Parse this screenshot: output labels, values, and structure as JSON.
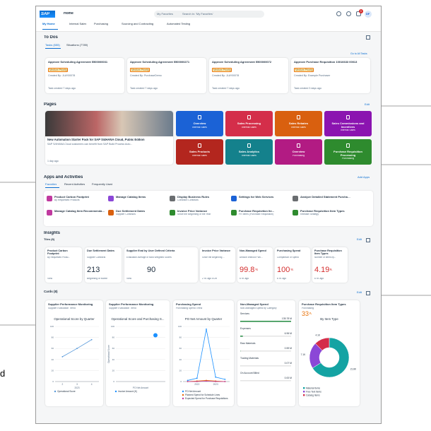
{
  "annotation": "d",
  "header": {
    "logo": "SAP",
    "home": "Home",
    "search_scope": "My Favorites",
    "search_placeholder": "Search in: 'My Favorites'",
    "notifications": "9",
    "avatar": "DF",
    "tabs": [
      "My Home",
      "Internal Sales",
      "Purchasing",
      "Sourcing and Contracting",
      "Automated Testing"
    ]
  },
  "todos": {
    "title": "To Dos",
    "tabs": [
      "Tasks (655)",
      "Situations (7789)"
    ],
    "link": "Go to All Tasks",
    "cards": [
      {
        "title": "Approve Scheduling Agreement 5500000031",
        "priority": "Medium Priority",
        "created_by": "Created By: JLAY00078",
        "footer": "Task created 7 days ago"
      },
      {
        "title": "Approve Scheduling Agreement 5500000271",
        "priority": "Medium Priority",
        "created_by": "Created By: PurchaseDemo",
        "footer": "Task created 7 days ago"
      },
      {
        "title": "Approve Scheduling Agreement 5500000072",
        "priority": "Medium Priority",
        "created_by": "Created By: JLAY00078",
        "footer": "Task created 7 days ago"
      },
      {
        "title": "Approve Purchase Requisition 10016633 00013",
        "priority": "Medium Priority",
        "created_by": "Created By: Example Purchaser",
        "footer": "Task created 3 days ago"
      }
    ]
  },
  "pages": {
    "title": "Pages",
    "edit": "Edit",
    "hero": {
      "title": "New Automation Starter Pack for SAP S/4HANA Cloud, Public Edition",
      "text": "SAP S/4HANA Cloud customers can benefit from SAP Build Process Auto...",
      "footer": "1 day ago"
    },
    "tiles": [
      {
        "title": "Overview",
        "subtitle": "Internal Sales",
        "color": "#1b62d6"
      },
      {
        "title": "Sales Processing",
        "subtitle": "Internal Sales",
        "color": "#d42e4a"
      },
      {
        "title": "Sales Rebates",
        "subtitle": "Internal Sales",
        "color": "#d9600f"
      },
      {
        "title": "Sales Commissions and Incentives",
        "subtitle": "Internal Sales",
        "color": "#8b14b0"
      },
      {
        "title": "Sales Products",
        "subtitle": "Internal Sales",
        "color": "#b3261e"
      },
      {
        "title": "Sales Analytics",
        "subtitle": "Internal Sales",
        "color": "#14818c"
      },
      {
        "title": "Overview",
        "subtitle": "Purchasing",
        "color": "#b21b83"
      },
      {
        "title": "Purchase Requisition Processing",
        "subtitle": "Purchasing",
        "color": "#2e8b2e"
      }
    ]
  },
  "apps": {
    "title": "Apps and Activities",
    "link": "Add Apps",
    "tabs": [
      "Favorites",
      "Recent Activities",
      "Frequently Used"
    ],
    "items": [
      {
        "name": "Product Carbon Footprint",
        "subtitle": "By Requested Products",
        "color": "#c0399f"
      },
      {
        "name": "Manage Catalog Items",
        "subtitle": "",
        "color": "#8b47d7"
      },
      {
        "name": "Display Business Rules",
        "subtitle": "Condition Contracts",
        "color": "#6a6d70"
      },
      {
        "name": "Settings for Web Services",
        "subtitle": "",
        "color": "#1b62d6"
      },
      {
        "name": "Analyze Detailed Statement Purchasing Rebate",
        "subtitle": "",
        "color": "#6a6d70"
      },
      {
        "name": "Manage Catalog Item Recommendations",
        "subtitle": "",
        "color": "#c0399f"
      },
      {
        "name": "Due Settlement Dates",
        "subtitle": "Supplier Contracts",
        "color": "#d9600f"
      },
      {
        "name": "Invoice Price Variance",
        "subtitle": "Since the Beginning of the Year",
        "color": "#2e8b2e"
      },
      {
        "name": "Purchase Requisition Ite...",
        "subtitle": "PR Items (Purchase Requisition)",
        "color": "#2e8b2e"
      },
      {
        "name": "Purchase Requisition Item Types",
        "subtitle": "Release Strategy",
        "color": "#2e8b2e"
      }
    ]
  },
  "insights": {
    "title": "Insights",
    "subtitle": "Tiles (8)",
    "edit": "Edit",
    "tiles": [
      {
        "title": "Product Carbon Footprint",
        "subtitle": "By Requested Produ...",
        "value": "",
        "unit": "",
        "footer": "View",
        "color": "#1d2d3e"
      },
      {
        "title": "Due Settlement Dates",
        "subtitle": "Supplier Contracts",
        "value": "213",
        "unit": "",
        "footer": "Beginning of Month",
        "color": "#1d2d3e"
      },
      {
        "title": "Supplier Eval by User Defined Criteria",
        "subtitle": "Evaluation Average of Most Weighted Scores",
        "value": "90",
        "unit": "",
        "footer": "View",
        "color": "#1d2d3e"
      },
      {
        "title": "Invoice Price Variance",
        "subtitle": "Since the Beginning ...",
        "value": "",
        "unit": "",
        "footer": "2 hr. ago EUR",
        "color": "#1d2d3e"
      },
      {
        "title": "Non-Managed Spend",
        "subtitle": "Amount Without Purc...",
        "value": "99.8",
        "unit": "%",
        "footer": "6 hr. ago",
        "color": "#d42e2e"
      },
      {
        "title": "Purchasing Spend",
        "subtitle": "Comparison of Spend",
        "value": "100",
        "unit": "%",
        "footer": "6 hr. ago",
        "color": "#d42e2e"
      },
      {
        "title": "Purchase Requisition Item Types",
        "subtitle": "Number of Items by...",
        "value": "4.19",
        "unit": "K",
        "footer": "6 hr. ago",
        "color": "#d42e2e"
      }
    ]
  },
  "cards": {
    "title": "Cards (8)",
    "edit": "Edit",
    "items": [
      {
        "title": "Supplier Performance Monitoring",
        "subtitle": "Supplier Evaluation Trend",
        "chart": {
          "type": "line",
          "title": "Operational Score by Quarter",
          "categories": [
            "2",
            "3",
            "4"
          ],
          "x_label": "2023",
          "series": [
            {
              "name": "Operational Score",
              "color": "#5899da",
              "values": [
                45,
                60,
                76
              ]
            }
          ],
          "ylim": [
            0,
            100
          ],
          "yticks": [
            0,
            20,
            40,
            60,
            80,
            100
          ]
        }
      },
      {
        "title": "Supplier Performance Monitoring",
        "subtitle": "Supplier Evaluation Trend",
        "chart": {
          "type": "scatter",
          "title": "Operational Score and Purchasing S...",
          "y_label": "Operational Score",
          "x_label": "PO Net Amount",
          "series": [
            {
              "name": "Invoice Amount (K)",
              "color": "#1b90ff",
              "x": [
                0.8
              ],
              "values": [
                84
              ]
            }
          ],
          "xlim": [
            0,
            1
          ],
          "ylim": [
            0,
            100
          ],
          "yticks": [
            0,
            20,
            40,
            60,
            80,
            100
          ]
        }
      },
      {
        "title": "Purchasing Spend",
        "subtitle": "Purchasing Spend Trend",
        "chart": {
          "type": "line",
          "title": "PO Net Amount by Quarter",
          "categories": [
            null,
            "2022",
            null,
            "2023",
            null
          ],
          "series": [
            {
              "name": "PO Net Amount",
              "color": "#1b90ff",
              "values": [
                2,
                6,
                95,
                8,
                4
              ]
            },
            {
              "name": "Planned Spend for Schedule Lines",
              "color": "#e76500",
              "values": [
                0,
                1,
                2,
                1,
                0
              ]
            },
            {
              "name": "Expected Spend for Purchase Requisitions",
              "color": "#c0399f",
              "values": [
                0,
                0,
                1,
                0,
                0
              ]
            }
          ],
          "ylim": [
            0,
            100
          ],
          "yticks": [
            0,
            20,
            40,
            60,
            80,
            100
          ]
        }
      },
      {
        "title": "Non-Managed Spend",
        "subtitle": "Non-Managed Spend by Category",
        "chart": {
          "type": "bar",
          "categories": [
            "Services",
            "Expenses",
            "Raw Materials",
            "Trading Materials",
            "On Account Billed"
          ],
          "values": [
            135.78,
            6.96,
            0.59,
            0.07,
            0
          ],
          "value_labels": [
            "135.78 M",
            "6.96 M",
            "0.59 M",
            "0.07 M",
            "0.00 M"
          ],
          "color": "#30914c"
        }
      },
      {
        "title": "Purchase Requisition Item Types",
        "subtitle": "Purchasing",
        "kpi": "33",
        "kpi_unit": "K",
        "chart": {
          "type": "pie",
          "title": "By Item Type",
          "categories": [
            "Material Items",
            "Free Text Items",
            "Catalog Items"
          ],
          "values": [
            21.8,
            7.1,
            4.1
          ],
          "value_labels": [
            "21.8K",
            "7.1K",
            "4.1K"
          ],
          "colors": [
            "#14a3a3",
            "#8b47d7",
            "#d42e4a"
          ]
        }
      }
    ]
  }
}
